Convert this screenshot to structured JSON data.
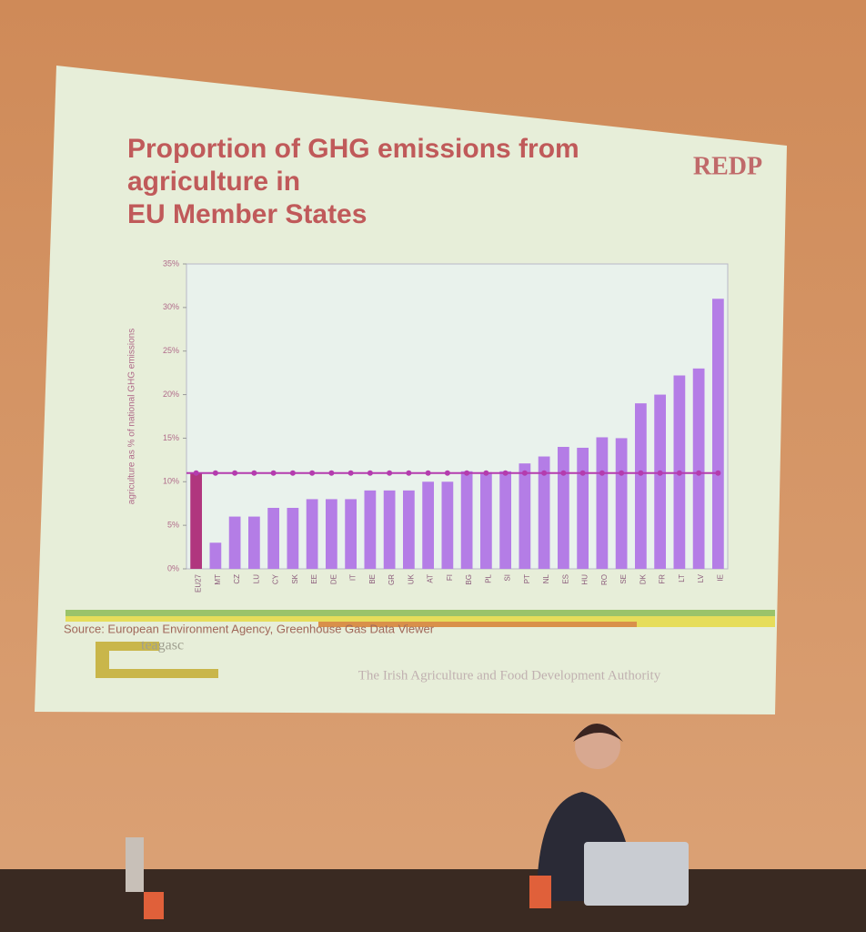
{
  "chart_data": {
    "type": "bar",
    "title": "Proportion of GHG emissions from agriculture in EU Member States",
    "y_label": "agriculture as % of national GHG emissions",
    "categories": [
      "EU27",
      "MT",
      "CZ",
      "LU",
      "CY",
      "SK",
      "EE",
      "DE",
      "IT",
      "BE",
      "GR",
      "UK",
      "AT",
      "FI",
      "BG",
      "PL",
      "SI",
      "PT",
      "NL",
      "ES",
      "HU",
      "RO",
      "SE",
      "DK",
      "FR",
      "LT",
      "LV",
      "IE"
    ],
    "values": [
      11,
      3,
      6,
      6,
      7,
      7,
      8,
      8,
      8,
      9,
      9,
      9,
      10,
      10,
      11.2,
      11.1,
      11.2,
      12.1,
      12.9,
      14,
      13.9,
      15.1,
      15,
      19,
      20,
      22.2,
      23,
      31
    ],
    "colors": [
      "#b0367e",
      "#b47de6",
      "#b47de6",
      "#b47de6",
      "#b47de6",
      "#b47de6",
      "#b47de6",
      "#b47de6",
      "#b47de6",
      "#b47de6",
      "#b47de6",
      "#b47de6",
      "#b47de6",
      "#b47de6",
      "#b47de6",
      "#b47de6",
      "#b47de6",
      "#b47de6",
      "#b47de6",
      "#b47de6",
      "#b47de6",
      "#b47de6",
      "#b47de6",
      "#b47de6",
      "#b47de6",
      "#b47de6",
      "#b47de6",
      "#b47de6"
    ],
    "reference_line": true,
    "reference_color": "#b43cae",
    "ylim": [
      0,
      35
    ],
    "yticks": [
      {
        "value": 0,
        "label": "0%"
      },
      {
        "value": 5,
        "label": "5%"
      },
      {
        "value": 10,
        "label": "10%"
      },
      {
        "value": 15,
        "label": "15%"
      },
      {
        "value": 20,
        "label": "20%"
      },
      {
        "value": 25,
        "label": "25%"
      },
      {
        "value": 30,
        "label": "30%"
      },
      {
        "value": 35,
        "label": "35%"
      }
    ],
    "grid": false
  },
  "slide": {
    "logo": "REDP",
    "source": "Source: European Environment Agency, Greenhouse Gas Data Viewer",
    "org_logo": "teagasc",
    "org_name": "The Irish Agriculture and Food Development Authority"
  }
}
